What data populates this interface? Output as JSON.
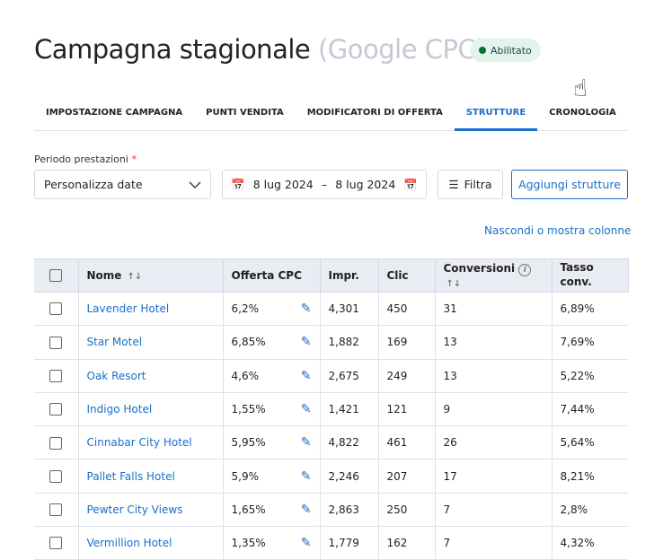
{
  "header": {
    "title": "Campagna stagionale",
    "subtitle": "(Google CPC)",
    "status": "Abilitato",
    "status_color": "#0d6b3c"
  },
  "tabs": [
    {
      "label": "IMPOSTAZIONE CAMPAGNA"
    },
    {
      "label": "PUNTI VENDITA"
    },
    {
      "label": "MODIFICATORI DI OFFERTA"
    },
    {
      "label": "STRUTTURE",
      "active": true
    },
    {
      "label": "CRONOLOGIA"
    }
  ],
  "filters": {
    "period_label": "Periodo prestazioni",
    "required_mark": "*",
    "period_value": "Personalizza date",
    "date_from": "8 lug 2024",
    "date_sep": "–",
    "date_to": "8 lug 2024",
    "filter_label": "Filtra",
    "add_label": "Aggiungi strutture",
    "columns_link": "Nascondi o mostra colonne"
  },
  "table": {
    "headers": {
      "name": "Nome",
      "bid": "Offerta CPC",
      "impr": "Impr.",
      "clicks": "Clic",
      "conv": "Conversioni",
      "rate": "Tasso conv."
    },
    "rows": [
      {
        "name": "Lavender Hotel",
        "bid": "6,2%",
        "impr": "4,301",
        "clicks": "450",
        "conv": "31",
        "rate": "6,89%"
      },
      {
        "name": "Star Motel",
        "bid": "6,85%",
        "impr": "1,882",
        "clicks": "169",
        "conv": "13",
        "rate": "7,69%"
      },
      {
        "name": "Oak Resort",
        "bid": "4,6%",
        "impr": "2,675",
        "clicks": "249",
        "conv": "13",
        "rate": "5,22%"
      },
      {
        "name": "Indigo Hotel",
        "bid": "1,55%",
        "impr": "1,421",
        "clicks": "121",
        "conv": "9",
        "rate": "7,44%"
      },
      {
        "name": "Cinnabar City Hotel",
        "bid": "5,95%",
        "impr": "4,822",
        "clicks": "461",
        "conv": "26",
        "rate": "5,64%"
      },
      {
        "name": "Pallet Falls Hotel",
        "bid": "5,9%",
        "impr": "2,246",
        "clicks": "207",
        "conv": "17",
        "rate": "8,21%"
      },
      {
        "name": "Pewter City Views",
        "bid": "1,65%",
        "impr": "2,863",
        "clicks": "250",
        "conv": "7",
        "rate": "2,8%"
      },
      {
        "name": "Vermillion Hotel",
        "bid": "1,35%",
        "impr": "1,779",
        "clicks": "162",
        "conv": "7",
        "rate": "4,32%"
      }
    ]
  }
}
